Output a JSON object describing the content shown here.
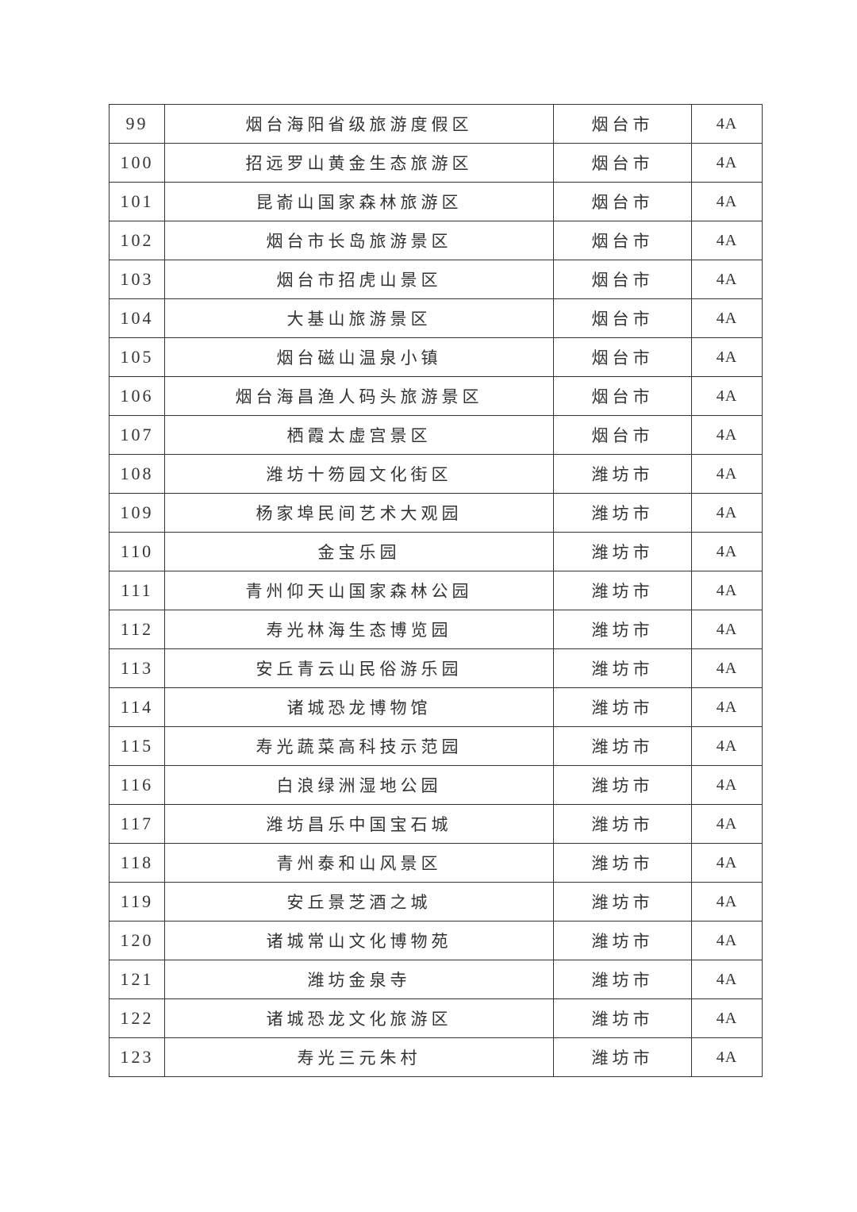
{
  "table": {
    "rows": [
      {
        "no": "99",
        "name": "烟台海阳省级旅游度假区",
        "city": "烟台市",
        "level": "4A"
      },
      {
        "no": "100",
        "name": "招远罗山黄金生态旅游区",
        "city": "烟台市",
        "level": "4A"
      },
      {
        "no": "101",
        "name": "昆嵛山国家森林旅游区",
        "city": "烟台市",
        "level": "4A"
      },
      {
        "no": "102",
        "name": "烟台市长岛旅游景区",
        "city": "烟台市",
        "level": "4A"
      },
      {
        "no": "103",
        "name": "烟台市招虎山景区",
        "city": "烟台市",
        "level": "4A"
      },
      {
        "no": "104",
        "name": "大基山旅游景区",
        "city": "烟台市",
        "level": "4A"
      },
      {
        "no": "105",
        "name": "烟台磁山温泉小镇",
        "city": "烟台市",
        "level": "4A"
      },
      {
        "no": "106",
        "name": "烟台海昌渔人码头旅游景区",
        "city": "烟台市",
        "level": "4A"
      },
      {
        "no": "107",
        "name": "栖霞太虚宫景区",
        "city": "烟台市",
        "level": "4A"
      },
      {
        "no": "108",
        "name": "潍坊十笏园文化街区",
        "city": "潍坊市",
        "level": "4A"
      },
      {
        "no": "109",
        "name": "杨家埠民间艺术大观园",
        "city": "潍坊市",
        "level": "4A"
      },
      {
        "no": "110",
        "name": "金宝乐园",
        "city": "潍坊市",
        "level": "4A"
      },
      {
        "no": "111",
        "name": "青州仰天山国家森林公园",
        "city": "潍坊市",
        "level": "4A"
      },
      {
        "no": "112",
        "name": "寿光林海生态博览园",
        "city": "潍坊市",
        "level": "4A"
      },
      {
        "no": "113",
        "name": "安丘青云山民俗游乐园",
        "city": "潍坊市",
        "level": "4A"
      },
      {
        "no": "114",
        "name": "诸城恐龙博物馆",
        "city": "潍坊市",
        "level": "4A"
      },
      {
        "no": "115",
        "name": "寿光蔬菜高科技示范园",
        "city": "潍坊市",
        "level": "4A"
      },
      {
        "no": "116",
        "name": "白浪绿洲湿地公园",
        "city": "潍坊市",
        "level": "4A"
      },
      {
        "no": "117",
        "name": "潍坊昌乐中国宝石城",
        "city": "潍坊市",
        "level": "4A"
      },
      {
        "no": "118",
        "name": "青州泰和山风景区",
        "city": "潍坊市",
        "level": "4A"
      },
      {
        "no": "119",
        "name": "安丘景芝酒之城",
        "city": "潍坊市",
        "level": "4A"
      },
      {
        "no": "120",
        "name": "诸城常山文化博物苑",
        "city": "潍坊市",
        "level": "4A"
      },
      {
        "no": "121",
        "name": "潍坊金泉寺",
        "city": "潍坊市",
        "level": "4A"
      },
      {
        "no": "122",
        "name": "诸城恐龙文化旅游区",
        "city": "潍坊市",
        "level": "4A"
      },
      {
        "no": "123",
        "name": "寿光三元朱村",
        "city": "潍坊市",
        "level": "4A"
      }
    ]
  }
}
